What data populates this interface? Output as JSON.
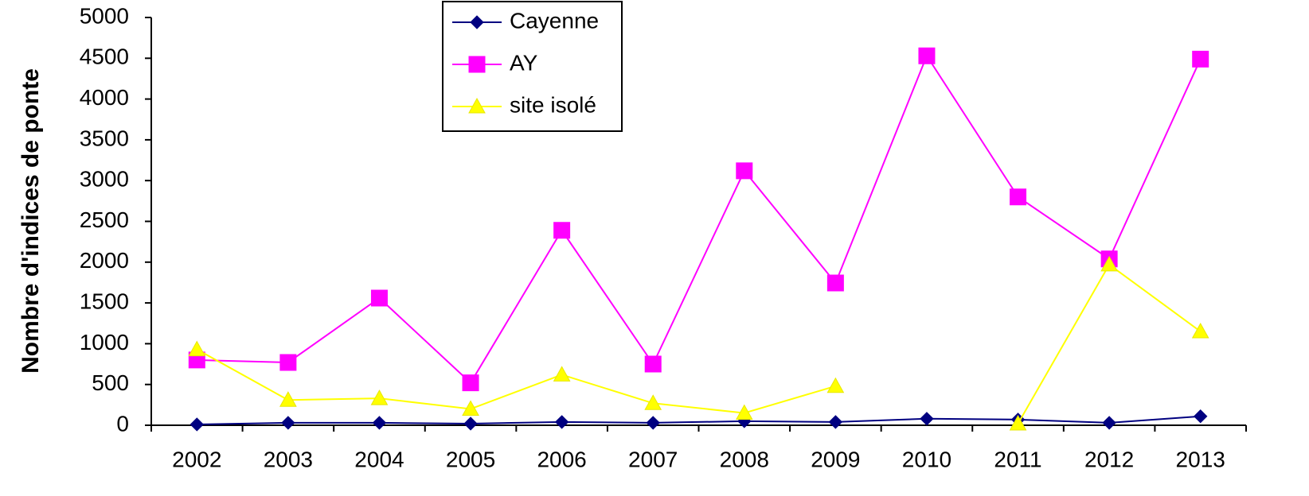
{
  "chart_data": {
    "type": "line",
    "y_label": "Nombre d'indices de ponte",
    "categories": [
      "2002",
      "2003",
      "2004",
      "2005",
      "2006",
      "2007",
      "2008",
      "2009",
      "2010",
      "2011",
      "2012",
      "2013"
    ],
    "series": [
      {
        "name": "Cayenne",
        "color": "#000080",
        "marker": "diamond",
        "values": [
          10,
          30,
          30,
          20,
          40,
          30,
          50,
          40,
          80,
          70,
          30,
          110
        ]
      },
      {
        "name": "AY",
        "color": "#ff00ff",
        "marker": "square",
        "values": [
          800,
          770,
          1560,
          520,
          2390,
          750,
          3120,
          1745,
          4530,
          2800,
          2040,
          4490
        ]
      },
      {
        "name": "site isolé",
        "color": "#ffff00",
        "marker": "triangle",
        "values": [
          930,
          310,
          330,
          200,
          620,
          270,
          150,
          480,
          null,
          20,
          1970,
          1150
        ]
      }
    ],
    "ylim": [
      0,
      5000
    ],
    "yticks": [
      0,
      500,
      1000,
      1500,
      2000,
      2500,
      3000,
      3500,
      4000,
      4500,
      5000
    ],
    "grid": false,
    "legend": "top"
  }
}
